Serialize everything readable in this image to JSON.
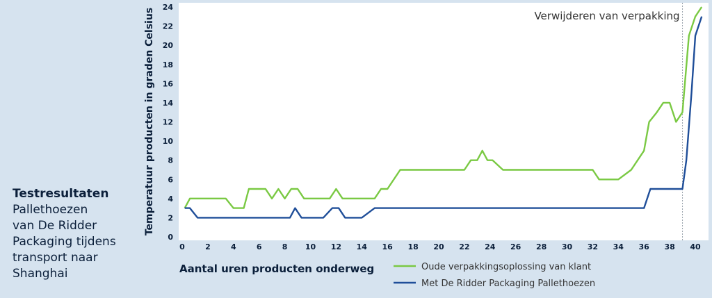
{
  "sidebar": {
    "title": "Testresultaten",
    "lines": [
      "Pallethoezen",
      "van De Ridder",
      "Packaging tijdens",
      "transport naar",
      "Shanghai"
    ]
  },
  "colors": {
    "background": "#d6e3ef",
    "plot_area": "#ffffff",
    "old_series": "#7ac943",
    "new_series": "#1f4e99",
    "text": "#0b1f3a"
  },
  "chart_data": {
    "type": "line",
    "title": "",
    "ylabel": "Temperatuur producten in graden Celsius",
    "xlabel": "Aantal uren producten onderweg",
    "xlim": [
      0,
      41
    ],
    "ylim": [
      0,
      24
    ],
    "xticks": [
      0,
      2,
      4,
      6,
      8,
      10,
      12,
      14,
      16,
      18,
      20,
      22,
      24,
      26,
      28,
      30,
      32,
      34,
      36,
      38,
      40
    ],
    "yticks": [
      0,
      2,
      4,
      6,
      8,
      10,
      12,
      14,
      16,
      18,
      20,
      22,
      24
    ],
    "grid": false,
    "legend_position": "bottom-right",
    "annotation": {
      "text": "Verwijderen van verpakking",
      "x": 39
    },
    "series": [
      {
        "name": "Oude verpakkingsoplossing van klant",
        "color": "#7ac943",
        "x": [
          0.2,
          0.6,
          1,
          3,
          3.4,
          4,
          4.8,
          5.2,
          6,
          6.5,
          7,
          7.5,
          8,
          8.5,
          9,
          9.5,
          10,
          11,
          11.5,
          12,
          12.5,
          13,
          14,
          15,
          15.5,
          16,
          17,
          18,
          20,
          22,
          22.5,
          23,
          23.4,
          23.8,
          24.2,
          25,
          27,
          29,
          31,
          32,
          32.5,
          33,
          34,
          35,
          36,
          36.4,
          37,
          37.5,
          38,
          38.5,
          39,
          39.5,
          40,
          40.5
        ],
        "y": [
          3,
          4,
          4,
          4,
          4,
          3,
          3,
          5,
          5,
          5,
          4,
          5,
          4,
          5,
          5,
          4,
          4,
          4,
          4,
          5,
          4,
          4,
          4,
          4,
          5,
          5,
          7,
          7,
          7,
          7,
          8,
          8,
          9,
          8,
          8,
          7,
          7,
          7,
          7,
          7,
          6,
          6,
          6,
          7,
          9,
          12,
          13,
          14,
          14,
          12,
          13,
          21,
          23,
          24
        ]
      },
      {
        "name": "Met De Ridder Packaging Pallethoezen",
        "color": "#1f4e99",
        "x": [
          0.2,
          0.6,
          1.2,
          4,
          8.4,
          8.8,
          9.3,
          11,
          11.7,
          12.2,
          12.7,
          14,
          15,
          35,
          36,
          36.5,
          39,
          39.3,
          39.7,
          40,
          40.5
        ],
        "y": [
          3,
          3,
          2,
          2,
          2,
          3,
          2,
          2,
          3,
          3,
          2,
          2,
          3,
          3,
          3,
          5,
          5,
          8,
          15,
          21,
          23
        ]
      }
    ]
  }
}
